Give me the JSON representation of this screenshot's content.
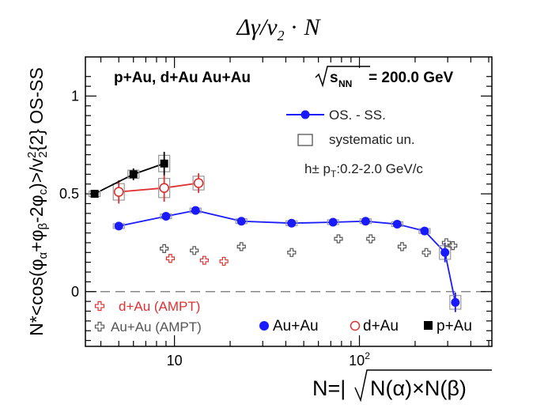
{
  "header": {
    "title": "Δγ/v₂ · N"
  },
  "chart_data": {
    "type": "scatter",
    "title": "Δγ/v₂ · N",
    "xlabel": "N=|√N(α)×N(β)",
    "ylabel": "N*<cos(φα+φβ-2φc)>/v₂²{2} OS-SS",
    "xscale": "log",
    "xlim": [
      3.3,
      520
    ],
    "ylim": [
      -0.28,
      1.2
    ],
    "x_ticks": [
      {
        "value": 10,
        "label": "10"
      },
      {
        "value": 100,
        "label": "10²"
      }
    ],
    "y_ticks": [
      {
        "value": 0,
        "label": "0"
      },
      {
        "value": 0.5,
        "label": "0.5"
      },
      {
        "value": 1,
        "label": "1"
      }
    ],
    "zero_line": true,
    "grid": false,
    "annotations": [
      "p+Au, d+Au Au+Au  √sNN = 200.0 GeV",
      "h± pT:0.2-2.0 GeV/c"
    ],
    "legend_top": {
      "position": "top-right",
      "entries": [
        "OS. - SS.",
        "systematic un."
      ]
    },
    "legend_bottom_left": {
      "position": "bottom-left",
      "entries": [
        "d+Au (AMPT)",
        "Au+Au (AMPT)"
      ]
    },
    "legend_bottom_right": {
      "position": "bottom-right",
      "entries": [
        "Au+Au",
        "d+Au",
        "p+Au"
      ]
    },
    "series": [
      {
        "name": "Au+Au",
        "marker": "filled-circle",
        "color": "#1a1aff",
        "line": true,
        "x": [
          5,
          9,
          13,
          23,
          43,
          72,
          108,
          160,
          225,
          290,
          330
        ],
        "y": [
          0.335,
          0.385,
          0.415,
          0.36,
          0.35,
          0.355,
          0.36,
          0.345,
          0.31,
          0.2,
          -0.055
        ],
        "yerr": [
          0.012,
          0.012,
          0.012,
          0.012,
          0.012,
          0.012,
          0.012,
          0.012,
          0.015,
          0.05,
          0.05
        ]
      },
      {
        "name": "d+Au",
        "marker": "open-circle",
        "color": "#e03030",
        "line": true,
        "x": [
          5,
          8.8,
          13.5
        ],
        "y": [
          0.51,
          0.53,
          0.555
        ],
        "yerr": [
          0.06,
          0.07,
          0.05
        ]
      },
      {
        "name": "p+Au",
        "marker": "filled-square",
        "color": "#000000",
        "line": true,
        "x": [
          3.7,
          6,
          8.8
        ],
        "y": [
          0.5,
          0.6,
          0.655
        ],
        "yerr": [
          0.02,
          0.03,
          0.06
        ]
      },
      {
        "name": "d+Au (AMPT)",
        "marker": "open-cross",
        "color": "#e03030",
        "line": false,
        "x": [
          9.5,
          14.5,
          18.5
        ],
        "y": [
          0.17,
          0.16,
          0.155
        ]
      },
      {
        "name": "Au+Au (AMPT)",
        "marker": "open-cross",
        "color": "#555555",
        "line": false,
        "x": [
          8.8,
          12.8,
          23,
          43,
          77,
          115,
          170,
          230,
          295,
          320
        ],
        "y": [
          0.22,
          0.21,
          0.23,
          0.2,
          0.27,
          0.27,
          0.23,
          0.2,
          0.25,
          0.235
        ]
      }
    ]
  }
}
